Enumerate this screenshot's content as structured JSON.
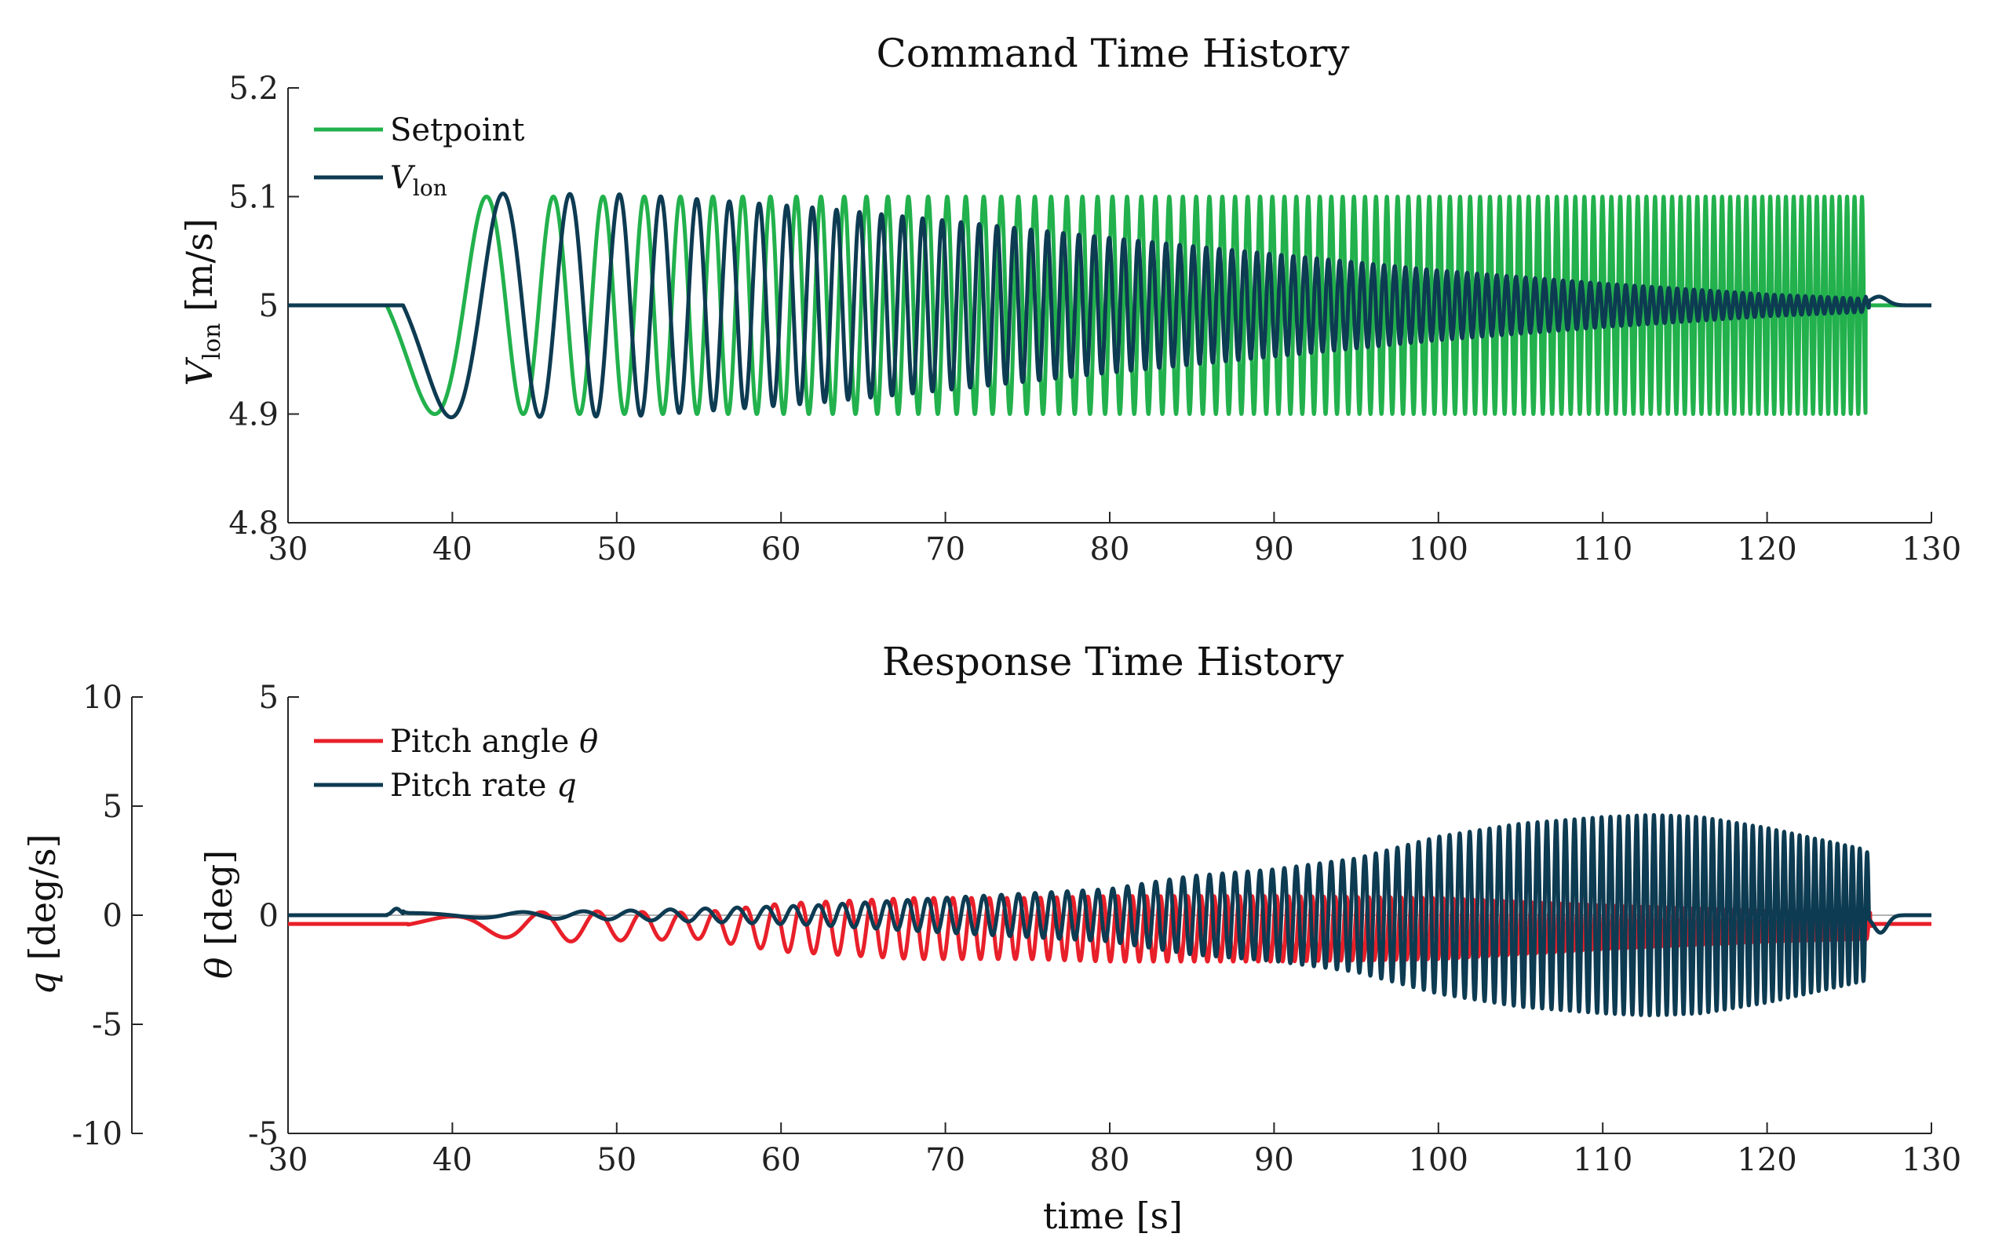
{
  "chart_data": [
    {
      "type": "line",
      "title": "Command Time History",
      "xlabel": "",
      "ylabel": {
        "symbol": "V",
        "sub": "lon",
        "unit": "[m/s]"
      },
      "xlim": [
        30,
        130
      ],
      "ylim": [
        4.8,
        5.2
      ],
      "xticks": [
        30,
        40,
        50,
        60,
        70,
        80,
        90,
        100,
        110,
        120,
        130
      ],
      "yticks": [
        4.8,
        4.9,
        5,
        5.1,
        5.2
      ],
      "ytick_labels": [
        "4.8",
        "4.9",
        "5",
        "5.1",
        "5.2"
      ],
      "legend": {
        "placement": "top-left"
      },
      "grid": false,
      "series": [
        {
          "name": "Setpoint",
          "color": "#22b14c",
          "signal": {
            "kind": "frequency_sweep",
            "t_start": 36,
            "t_end": 126,
            "baseline": 5,
            "amplitude": 0.1,
            "first_min_t": 41.5,
            "first_max_t": 50.0,
            "last_period": 0.45
          }
        },
        {
          "name": "V_lon",
          "label_symbol": "V",
          "label_sub": "lon",
          "color": "#0d3b52",
          "signal": {
            "kind": "lagged_response",
            "follows": "Setpoint",
            "baseline": 5,
            "amplitude_at_t": [
              [
                41.5,
                0.103
              ],
              [
                51,
                0.102
              ],
              [
                62,
                0.09
              ],
              [
                70,
                0.078
              ],
              [
                80,
                0.062
              ],
              [
                90,
                0.047
              ],
              [
                100,
                0.032
              ],
              [
                110,
                0.02
              ],
              [
                120,
                0.01
              ],
              [
                126,
                0.006
              ]
            ],
            "lag": [
              [
                36,
                1.0
              ],
              [
                60,
                1.0
              ],
              [
                90,
                0.55
              ],
              [
                126,
                0.2
              ]
            ],
            "overshoot_after_end": 0.008
          }
        }
      ]
    },
    {
      "type": "line",
      "title": "Response Time History",
      "xlabel": "time [s]",
      "ylabel_left": {
        "symbol": "q",
        "unit": "[deg/s]"
      },
      "ylabel_right": {
        "symbol": "θ",
        "unit": "[deg]"
      },
      "xlim": [
        30,
        130
      ],
      "ylim_q": [
        -10,
        10
      ],
      "ylim_theta": [
        -5,
        5
      ],
      "xticks": [
        30,
        40,
        50,
        60,
        70,
        80,
        90,
        100,
        110,
        120,
        130
      ],
      "yticks_q": [
        "10",
        "5",
        "0",
        "-5",
        "-10"
      ],
      "yticks_theta": [
        "5",
        "0",
        "-5"
      ],
      "legend": {
        "placement": "top-left"
      },
      "grid": false,
      "zero_line": true,
      "series": [
        {
          "name": "Pitch angle θ",
          "label_text": "Pitch angle ",
          "label_symbol": "θ",
          "color": "#e8202a",
          "axis": "theta",
          "signal": {
            "kind": "response",
            "baseline": -0.2,
            "amplitude_at_t": [
              [
                40,
                0.2
              ],
              [
                47,
                0.35
              ],
              [
                55,
                0.3
              ],
              [
                60,
                0.55
              ],
              [
                68,
                0.7
              ],
              [
                75,
                0.7
              ],
              [
                80,
                0.75
              ],
              [
                85,
                0.75
              ],
              [
                90,
                0.75
              ],
              [
                100,
                0.7
              ],
              [
                110,
                0.5
              ],
              [
                120,
                0.35
              ],
              [
                126,
                0.3
              ]
            ]
          }
        },
        {
          "name": "Pitch rate q",
          "label_text": "Pitch rate ",
          "label_symbol": "q",
          "color": "#0d3b52",
          "axis": "q",
          "signal": {
            "kind": "response",
            "baseline": 0,
            "amplitude_at_t": [
              [
                40,
                0.1
              ],
              [
                50,
                0.2
              ],
              [
                55,
                0.3
              ],
              [
                62,
                0.45
              ],
              [
                70,
                0.8
              ],
              [
                80,
                1.2
              ],
              [
                85,
                1.8
              ],
              [
                90,
                2.1
              ],
              [
                95,
                2.6
              ],
              [
                100,
                3.6
              ],
              [
                105,
                4.2
              ],
              [
                110,
                4.5
              ],
              [
                113,
                4.6
              ],
              [
                116,
                4.5
              ],
              [
                120,
                4.0
              ],
              [
                126,
                3.0
              ]
            ],
            "overshoot_after_end": 0.8
          }
        }
      ]
    }
  ]
}
